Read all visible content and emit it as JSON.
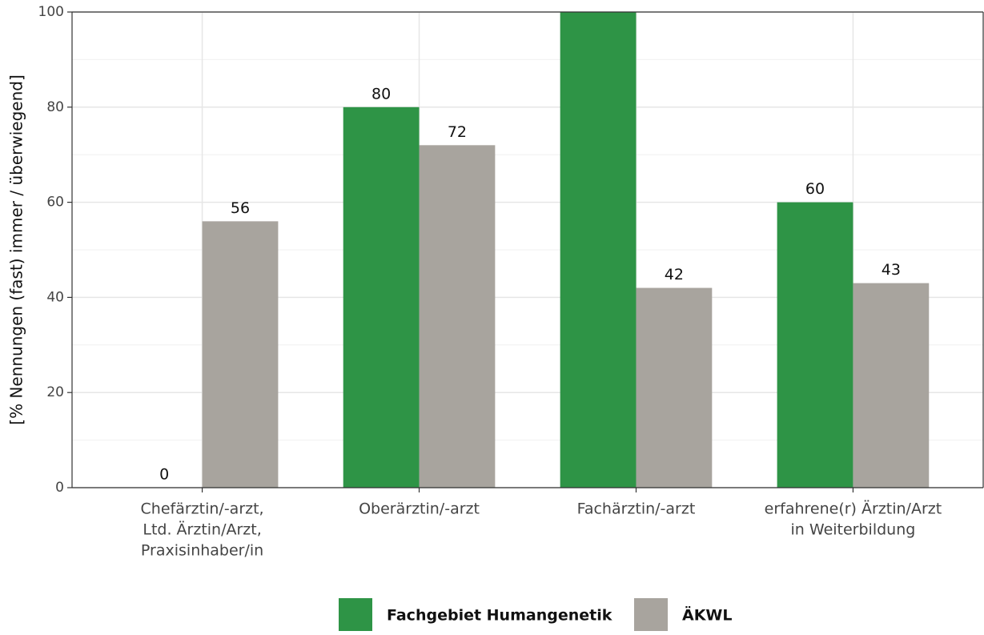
{
  "chart_data": {
    "type": "bar",
    "y_label": "[% Nennungen (fast) immer / überwiegend]",
    "categories": [
      [
        "Chefärztin/-arzt,",
        "Ltd. Ärztin/Arzt,",
        "Praxisinhaber/in"
      ],
      [
        "Oberärztin/-arzt"
      ],
      [
        "Fachärztin/-arzt"
      ],
      [
        "erfahrene(r) Ärztin/Arzt",
        "in Weiterbildung"
      ]
    ],
    "series": [
      {
        "name": "Fachgebiet Humangenetik",
        "color": "#2e9446",
        "values": [
          0,
          80,
          100,
          60
        ],
        "value_labels": [
          "0",
          "80",
          null,
          "60"
        ]
      },
      {
        "name": "ÄKWL",
        "color": "#a8a49e",
        "values": [
          56,
          72,
          42,
          43
        ],
        "value_labels": [
          "56",
          "72",
          "42",
          "43"
        ]
      }
    ],
    "ylim": [
      0,
      100
    ],
    "yticks": [
      0,
      20,
      40,
      60,
      80,
      100
    ],
    "grid": true,
    "legend": "bottom"
  }
}
